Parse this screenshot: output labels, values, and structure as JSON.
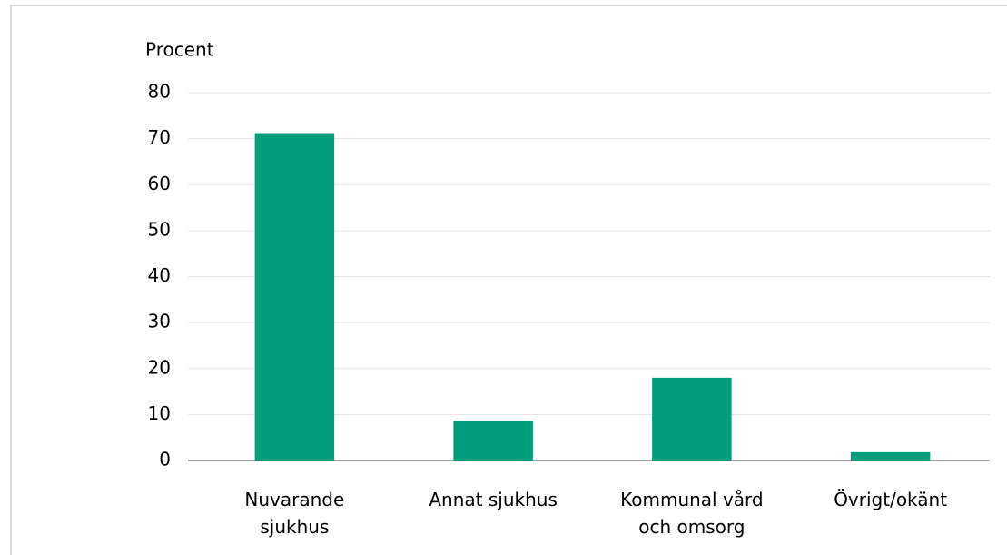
{
  "chart_data": {
    "type": "bar",
    "y_label": "Procent",
    "categories": [
      "Nuvarande sjukhus",
      "Annat sjukhus",
      "Kommunal vård och omsorg",
      "Övrigt/okänt"
    ],
    "values": [
      71.2,
      8.6,
      18.0,
      1.8
    ],
    "color": "#009e7a",
    "ylim": [
      0,
      80
    ],
    "yticks": [
      0,
      10,
      20,
      30,
      40,
      50,
      60,
      70,
      80
    ],
    "grid": true
  }
}
